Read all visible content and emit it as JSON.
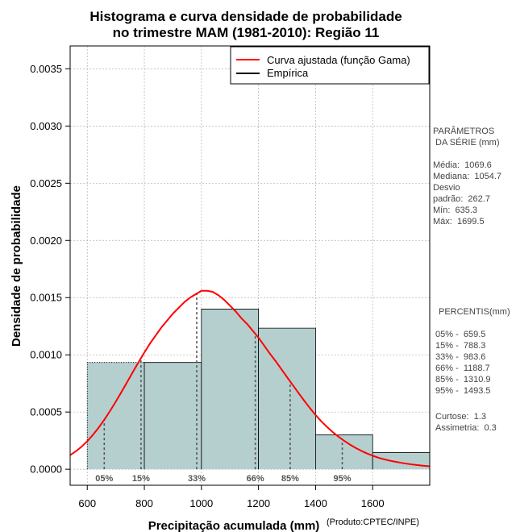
{
  "chart_data": {
    "type": "histogram",
    "title": [
      "Histograma e curva densidade de probabilidade",
      "no trimestre MAM (1981-2010): Região 11"
    ],
    "xlabel": "Precipitação acumulada (mm)",
    "ylabel": "Densidade de probabilidade",
    "product_note": "(Produto:CPTEC/INPE)",
    "xlim": [
      540,
      1800
    ],
    "ylim": [
      -0.00014,
      0.0037
    ],
    "x_ticks": [
      600,
      800,
      1000,
      1200,
      1400,
      1600
    ],
    "x_tick_labels": [
      "600",
      "800",
      "1000",
      "1200",
      "1400",
      "1600"
    ],
    "y_ticks": [
      0,
      0.0005,
      0.001,
      0.0015,
      0.002,
      0.0025,
      0.003,
      0.0035
    ],
    "y_tick_labels": [
      "0.0000",
      "0.0005",
      "0.0010",
      "0.0015",
      "0.0020",
      "0.0025",
      "0.0030",
      "0.0035"
    ],
    "grid": true,
    "bins": [
      {
        "start": 600,
        "end": 800,
        "density": 0.000933
      },
      {
        "start": 800,
        "end": 1000,
        "density": 0.000933
      },
      {
        "start": 1000,
        "end": 1200,
        "density": 0.0014
      },
      {
        "start": 1200,
        "end": 1400,
        "density": 0.001233
      },
      {
        "start": 1400,
        "end": 1600,
        "density": 0.0003
      },
      {
        "start": 1600,
        "end": 1800,
        "density": 0.000145
      }
    ],
    "fitted_curve": {
      "name": "Curva ajustada (função Gama)",
      "x": [
        540,
        560,
        580,
        600,
        620,
        640,
        660,
        680,
        700,
        720,
        740,
        760,
        780,
        800,
        820,
        840,
        860,
        880,
        900,
        920,
        940,
        960,
        980,
        1000,
        1020,
        1040,
        1060,
        1080,
        1100,
        1120,
        1140,
        1160,
        1180,
        1200,
        1220,
        1240,
        1260,
        1280,
        1300,
        1320,
        1340,
        1360,
        1380,
        1400,
        1420,
        1440,
        1460,
        1480,
        1500,
        1520,
        1540,
        1560,
        1580,
        1600,
        1620,
        1640,
        1660,
        1680,
        1700,
        1720,
        1740,
        1760,
        1780,
        1800
      ],
      "y": [
        0.000123,
        0.000157,
        0.000197,
        0.000245,
        0.000301,
        0.000364,
        0.000434,
        0.00051,
        0.000591,
        0.000676,
        0.000763,
        0.000851,
        0.000937,
        0.00102,
        0.0011,
        0.00117,
        0.00124,
        0.0013,
        0.00136,
        0.00141,
        0.00146,
        0.0015,
        0.00153,
        0.00156,
        0.00156,
        0.00155,
        0.00152,
        0.00148,
        0.00143,
        0.00138,
        0.00132,
        0.00127,
        0.00121,
        0.00115,
        0.00108,
        0.00101,
        0.000945,
        0.000875,
        0.000805,
        0.000736,
        0.000667,
        0.0006,
        0.000535,
        0.000474,
        0.000419,
        0.00037,
        0.000325,
        0.000285,
        0.000249,
        0.000216,
        0.000187,
        0.000161,
        0.000138,
        0.000118,
        0.000101,
        8.7e-05,
        7.5e-05,
        6.5e-05,
        5.6e-05,
        4.8e-05,
        4.1e-05,
        3.5e-05,
        3e-05,
        2.6e-05
      ]
    },
    "empirical_label": "Empírica",
    "percentile_lines": [
      {
        "label": "05%",
        "x": 659.5
      },
      {
        "label": "15%",
        "x": 788.3
      },
      {
        "label": "33%",
        "x": 983.6
      },
      {
        "label": "66%",
        "x": 1188.7
      },
      {
        "label": "85%",
        "x": 1310.9
      },
      {
        "label": "95%",
        "x": 1493.5
      }
    ],
    "legend_position": "top-right"
  },
  "side_panel": {
    "params_heading": [
      "PARÂMETROS",
      " DA SÉRIE (mm)"
    ],
    "params": [
      "Média:  1069.6",
      "Mediana:  1054.7",
      "Desvio",
      "padrão:  262.7",
      "Mín:  635.3",
      "Máx:  1699.5"
    ],
    "percentis_heading": "PERCENTIS(mm)",
    "percentis": [
      "05% -  659.5",
      "15% -  788.3",
      "33% -  983.6",
      "66% -  1188.7",
      "85% -  1310.9",
      "95% -  1493.5"
    ],
    "stats": [
      "Curtose:  1.3",
      "Assimetria:  0.3"
    ]
  },
  "colors": {
    "bar_fill": "#b5cfcf",
    "curve": "#ff0000",
    "grid": "#b0b0b0",
    "percentile_line": "#555555"
  }
}
